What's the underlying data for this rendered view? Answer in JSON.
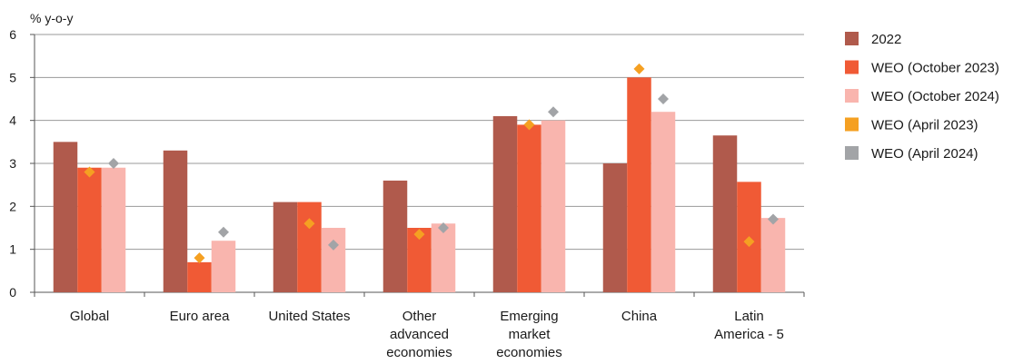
{
  "chart_data": {
    "type": "bar",
    "ylabel": "% y-o-y",
    "ylim": [
      0,
      6
    ],
    "yticks": [
      0,
      1,
      2,
      3,
      4,
      5,
      6
    ],
    "grid": true,
    "legend_position": "right",
    "categories": [
      [
        "Global"
      ],
      [
        "Euro area"
      ],
      [
        "United States"
      ],
      [
        "Other",
        "advanced",
        "economies"
      ],
      [
        "Emerging",
        "market",
        "economies"
      ],
      [
        "China"
      ],
      [
        "Latin",
        "America - 5"
      ]
    ],
    "series": [
      {
        "name": "2022",
        "kind": "bar",
        "color": "#b05a4c",
        "values": [
          3.5,
          3.3,
          2.1,
          2.6,
          4.1,
          3.0,
          3.65
        ]
      },
      {
        "name": "WEO (October 2023)",
        "kind": "bar",
        "color": "#f05a35",
        "values": [
          2.9,
          0.7,
          2.1,
          1.5,
          3.9,
          5.0,
          2.57
        ]
      },
      {
        "name": "WEO (October 2024)",
        "kind": "bar",
        "color": "#f9b5ae",
        "values": [
          2.9,
          1.2,
          1.5,
          1.6,
          4.0,
          4.2,
          1.73
        ]
      },
      {
        "name": "WEO (April 2023)",
        "kind": "marker",
        "color": "#f5a022",
        "values": [
          2.8,
          0.8,
          1.6,
          1.35,
          3.9,
          5.2,
          1.18
        ]
      },
      {
        "name": "WEO (April 2024)",
        "kind": "marker",
        "color": "#a2a4a7",
        "values": [
          3.0,
          1.4,
          1.1,
          1.5,
          4.2,
          4.5,
          1.7
        ]
      }
    ]
  }
}
